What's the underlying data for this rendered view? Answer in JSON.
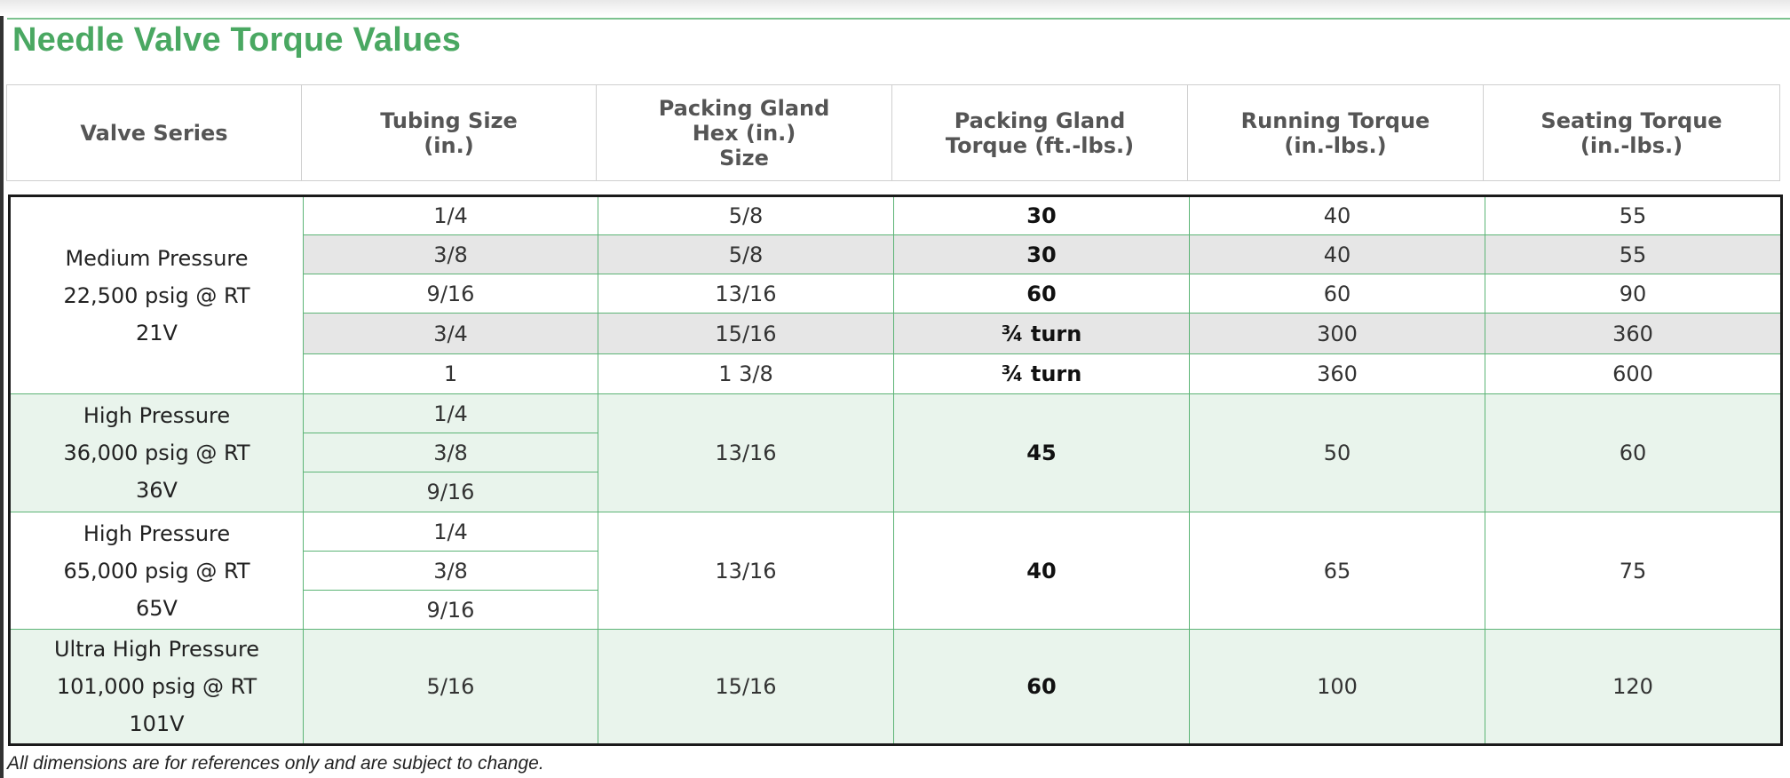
{
  "title": "Needle Valve Torque Values",
  "headers": [
    [
      "Valve Series"
    ],
    [
      "Tubing Size",
      "(in.)"
    ],
    [
      "Packing Gland",
      "Hex (in.)",
      "Size"
    ],
    [
      "Packing Gland",
      "Torque (ft.-lbs.)"
    ],
    [
      "Running Torque",
      "(in.-lbs.)"
    ],
    [
      "Seating Torque",
      "(in.-lbs.)"
    ]
  ],
  "groups": [
    {
      "series": [
        "Medium Pressure",
        "22,500 psig @ RT",
        "21V"
      ],
      "rows": [
        {
          "tubing": "1/4",
          "hex": "5/8",
          "gland_torque": "30",
          "running": "40",
          "seating": "55"
        },
        {
          "tubing": "3/8",
          "hex": "5/8",
          "gland_torque": "30",
          "running": "40",
          "seating": "55"
        },
        {
          "tubing": "9/16",
          "hex": "13/16",
          "gland_torque": "60",
          "running": "60",
          "seating": "90"
        },
        {
          "tubing": "3/4",
          "hex": "15/16",
          "gland_torque": "¾ turn",
          "running": "300",
          "seating": "360"
        },
        {
          "tubing": "1",
          "hex": "1 3/8",
          "gland_torque": "¾ turn",
          "running": "360",
          "seating": "600"
        }
      ]
    },
    {
      "series": [
        "High Pressure",
        "36,000 psig @ RT",
        "36V"
      ],
      "tubing": [
        "1/4",
        "3/8",
        "9/16"
      ],
      "hex": "13/16",
      "gland_torque": "45",
      "running": "50",
      "seating": "60"
    },
    {
      "series": [
        "High Pressure",
        "65,000 psig @ RT",
        "65V"
      ],
      "tubing": [
        "1/4",
        "3/8",
        "9/16"
      ],
      "hex": "13/16",
      "gland_torque": "40",
      "running": "65",
      "seating": "75"
    },
    {
      "series": [
        "Ultra High Pressure",
        "101,000 psig @ RT",
        "101V"
      ],
      "tubing": [
        "5/16"
      ],
      "hex": "15/16",
      "gland_torque": "60",
      "running": "100",
      "seating": "120"
    }
  ],
  "footnote": "All dimensions are for references only and are subject to change.",
  "colors": {
    "title": "#4aa862",
    "grid": "#5cb476",
    "shade_green": "#e9f4ec",
    "shade_gray": "#e6e6e6"
  }
}
